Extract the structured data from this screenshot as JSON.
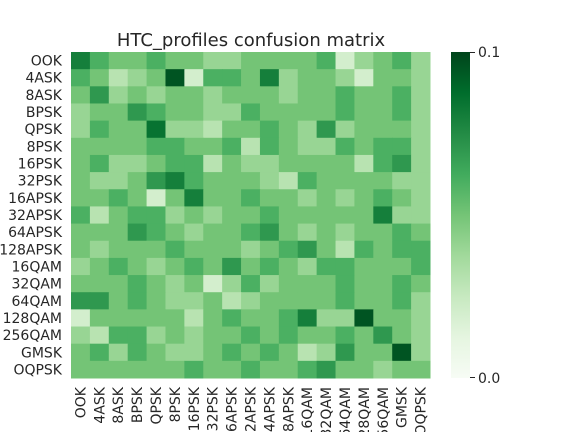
{
  "chart_data": {
    "type": "heatmap",
    "title": "HTC_profiles confusion matrix",
    "labels": [
      "OOK",
      "4ASK",
      "8ASK",
      "BPSK",
      "QPSK",
      "8PSK",
      "16PSK",
      "32PSK",
      "16APSK",
      "32APSK",
      "64APSK",
      "128APSK",
      "16QAM",
      "32QAM",
      "64QAM",
      "128QAM",
      "256QAM",
      "GMSK",
      "OQPSK"
    ],
    "colorbar": {
      "min": 0.0,
      "max": 0.1,
      "tick_labels": [
        "0.1",
        "0.0"
      ],
      "colormap": "Greens"
    },
    "colormap_stops": [
      "#f7fcf5",
      "#e5f5e0",
      "#c7e9c0",
      "#a1d99b",
      "#74c476",
      "#41ab5d",
      "#238b45",
      "#006d2c",
      "#00441b"
    ],
    "matrix": [
      [
        0.08,
        0.06,
        0.05,
        0.05,
        0.06,
        0.05,
        0.05,
        0.04,
        0.04,
        0.05,
        0.05,
        0.05,
        0.05,
        0.06,
        0.02,
        0.04,
        0.05,
        0.06,
        0.04
      ],
      [
        0.06,
        0.05,
        0.03,
        0.04,
        0.05,
        0.095,
        0.02,
        0.06,
        0.06,
        0.05,
        0.08,
        0.04,
        0.05,
        0.05,
        0.04,
        0.02,
        0.05,
        0.05,
        0.04
      ],
      [
        0.05,
        0.07,
        0.04,
        0.05,
        0.04,
        0.05,
        0.05,
        0.04,
        0.05,
        0.05,
        0.05,
        0.04,
        0.05,
        0.05,
        0.06,
        0.05,
        0.05,
        0.06,
        0.04
      ],
      [
        0.04,
        0.05,
        0.05,
        0.07,
        0.06,
        0.05,
        0.05,
        0.04,
        0.04,
        0.06,
        0.05,
        0.05,
        0.05,
        0.05,
        0.06,
        0.05,
        0.05,
        0.06,
        0.04
      ],
      [
        0.04,
        0.06,
        0.05,
        0.05,
        0.085,
        0.04,
        0.04,
        0.03,
        0.05,
        0.05,
        0.06,
        0.05,
        0.04,
        0.07,
        0.04,
        0.05,
        0.05,
        0.05,
        0.04
      ],
      [
        0.05,
        0.05,
        0.05,
        0.05,
        0.06,
        0.06,
        0.05,
        0.05,
        0.06,
        0.03,
        0.06,
        0.05,
        0.04,
        0.04,
        0.06,
        0.05,
        0.06,
        0.06,
        0.04
      ],
      [
        0.05,
        0.06,
        0.04,
        0.04,
        0.05,
        0.06,
        0.06,
        0.03,
        0.05,
        0.04,
        0.04,
        0.05,
        0.05,
        0.05,
        0.05,
        0.03,
        0.06,
        0.07,
        0.04
      ],
      [
        0.05,
        0.04,
        0.04,
        0.05,
        0.07,
        0.08,
        0.06,
        0.05,
        0.05,
        0.05,
        0.04,
        0.03,
        0.06,
        0.05,
        0.05,
        0.05,
        0.05,
        0.04,
        0.04
      ],
      [
        0.05,
        0.05,
        0.06,
        0.05,
        0.02,
        0.05,
        0.08,
        0.05,
        0.05,
        0.06,
        0.05,
        0.05,
        0.04,
        0.05,
        0.04,
        0.05,
        0.06,
        0.05,
        0.04
      ],
      [
        0.06,
        0.03,
        0.05,
        0.06,
        0.06,
        0.04,
        0.05,
        0.04,
        0.05,
        0.05,
        0.06,
        0.05,
        0.05,
        0.05,
        0.05,
        0.05,
        0.08,
        0.04,
        0.04
      ],
      [
        0.05,
        0.05,
        0.05,
        0.07,
        0.06,
        0.05,
        0.04,
        0.05,
        0.05,
        0.06,
        0.07,
        0.05,
        0.04,
        0.05,
        0.04,
        0.05,
        0.05,
        0.06,
        0.05
      ],
      [
        0.05,
        0.04,
        0.05,
        0.05,
        0.05,
        0.06,
        0.05,
        0.05,
        0.05,
        0.04,
        0.05,
        0.06,
        0.07,
        0.05,
        0.03,
        0.06,
        0.05,
        0.06,
        0.06
      ],
      [
        0.04,
        0.05,
        0.06,
        0.05,
        0.04,
        0.05,
        0.06,
        0.05,
        0.07,
        0.05,
        0.06,
        0.05,
        0.04,
        0.06,
        0.06,
        0.05,
        0.05,
        0.05,
        0.06
      ],
      [
        0.05,
        0.05,
        0.05,
        0.06,
        0.05,
        0.04,
        0.05,
        0.02,
        0.04,
        0.06,
        0.04,
        0.05,
        0.05,
        0.05,
        0.06,
        0.05,
        0.05,
        0.06,
        0.05
      ],
      [
        0.07,
        0.07,
        0.05,
        0.06,
        0.05,
        0.04,
        0.04,
        0.05,
        0.03,
        0.04,
        0.05,
        0.05,
        0.05,
        0.05,
        0.06,
        0.05,
        0.05,
        0.06,
        0.04
      ],
      [
        0.02,
        0.05,
        0.05,
        0.05,
        0.05,
        0.05,
        0.03,
        0.05,
        0.06,
        0.05,
        0.05,
        0.06,
        0.08,
        0.04,
        0.04,
        0.095,
        0.05,
        0.05,
        0.04
      ],
      [
        0.04,
        0.03,
        0.06,
        0.06,
        0.04,
        0.05,
        0.04,
        0.05,
        0.05,
        0.06,
        0.05,
        0.06,
        0.05,
        0.05,
        0.06,
        0.05,
        0.07,
        0.05,
        0.04
      ],
      [
        0.05,
        0.06,
        0.04,
        0.06,
        0.05,
        0.04,
        0.04,
        0.05,
        0.06,
        0.05,
        0.06,
        0.05,
        0.03,
        0.04,
        0.07,
        0.05,
        0.05,
        0.095,
        0.04
      ],
      [
        0.05,
        0.05,
        0.05,
        0.05,
        0.05,
        0.05,
        0.06,
        0.05,
        0.05,
        0.06,
        0.05,
        0.05,
        0.06,
        0.07,
        0.05,
        0.05,
        0.04,
        0.05,
        0.05
      ]
    ]
  }
}
